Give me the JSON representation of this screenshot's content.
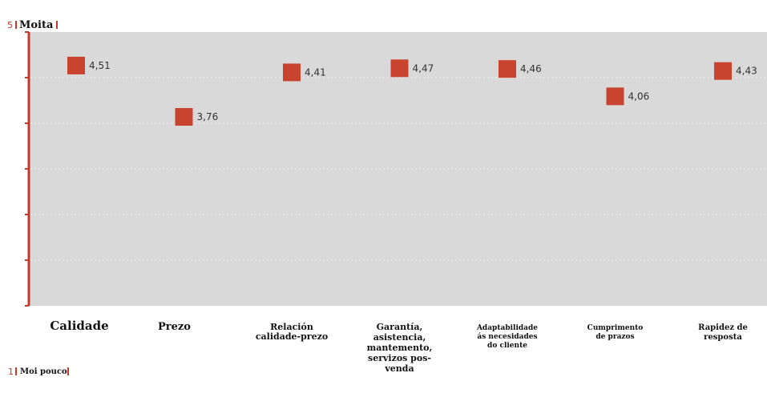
{
  "chart_data": {
    "type": "scatter",
    "title": "",
    "xlabel": "",
    "ylabel": "",
    "ylim": [
      1,
      5
    ],
    "grid": true,
    "scale_labels": {
      "top_number": "5",
      "top_text": "Moita",
      "bottom_number": "1",
      "bottom_text": "Moi pouco"
    },
    "categories": [
      "Calidade",
      "Prezo",
      "Relación calidade-prezo",
      "Garantía, asistencia, mantemento, servizos pos-venda",
      "Adaptabilidade ás necesidades do cliente",
      "Cumprimento de prazos",
      "Rapidez de resposta"
    ],
    "category_lines": [
      [
        "Calidade"
      ],
      [
        "Prezo"
      ],
      [
        "Relación",
        "calidade-prezo"
      ],
      [
        "Garantía,",
        "asistencia,",
        "mantemento,",
        "servizos pos-",
        "venda"
      ],
      [
        "Adaptabilidade",
        "ás necesidades",
        "do cliente"
      ],
      [
        "Cumprimento",
        "de prazos"
      ],
      [
        "Rapidez de",
        "resposta"
      ]
    ],
    "values": [
      4.51,
      3.76,
      4.41,
      4.47,
      4.46,
      4.06,
      4.43
    ],
    "value_labels": [
      "4,51",
      "3,76",
      "4,41",
      "4,47",
      "4,46",
      "4,06",
      "4,43"
    ],
    "marker_color": "#c8442e",
    "axis_color": "#c0392b"
  }
}
